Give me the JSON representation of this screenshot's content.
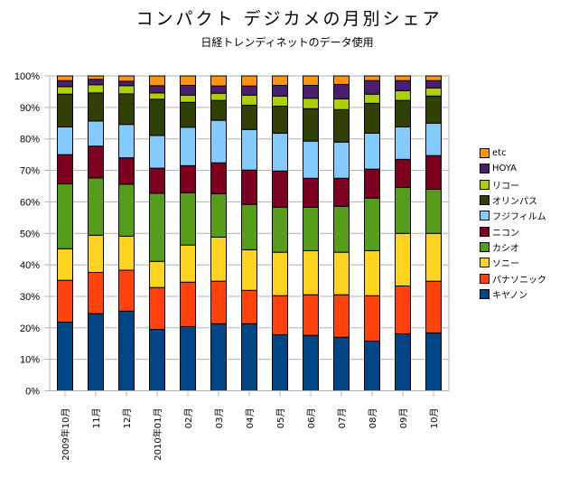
{
  "chart_data": {
    "type": "bar",
    "stacked": "percent",
    "title": "コンパクト デジカメの月別シェア",
    "subtitle": "日経トレンディネットのデータ使用",
    "xlabel": "",
    "ylabel": "",
    "ylim": [
      0,
      100
    ],
    "yticks": [
      "0%",
      "10%",
      "20%",
      "30%",
      "40%",
      "50%",
      "60%",
      "70%",
      "80%",
      "90%",
      "100%"
    ],
    "grid": true,
    "legend_position": "right",
    "categories": [
      "2009年10月",
      "11月",
      "12月",
      "2010年01月",
      "02月",
      "03月",
      "04月",
      "05月",
      "06月",
      "07月",
      "08月",
      "09月",
      "10月"
    ],
    "series": [
      {
        "name": "キヤノン",
        "color": "#004586",
        "values": [
          21.8,
          24.5,
          25.3,
          19.5,
          20.4,
          21.3,
          21.3,
          17.8,
          17.6,
          17.0,
          15.8,
          18.1,
          18.4
        ]
      },
      {
        "name": "パナソニック",
        "color": "#FF420E",
        "values": [
          13.3,
          13.1,
          13.0,
          13.3,
          14.1,
          13.5,
          10.6,
          12.4,
          12.9,
          13.5,
          14.4,
          15.2,
          16.4
        ]
      },
      {
        "name": "ソニー",
        "color": "#FFD320",
        "values": [
          10.0,
          11.8,
          10.8,
          8.3,
          11.8,
          14.0,
          12.9,
          13.8,
          14.0,
          13.5,
          14.3,
          16.7,
          15.2
        ]
      },
      {
        "name": "カシオ",
        "color": "#579D1C",
        "values": [
          20.6,
          18.2,
          16.5,
          21.6,
          16.6,
          13.8,
          14.4,
          14.3,
          13.8,
          14.6,
          16.7,
          14.6,
          14.0
        ]
      },
      {
        "name": "ニコン",
        "color": "#7E0021",
        "values": [
          9.3,
          10.1,
          8.4,
          8.0,
          8.6,
          9.8,
          10.9,
          11.5,
          9.2,
          8.9,
          9.2,
          8.9,
          10.7
        ]
      },
      {
        "name": "フジフィルム",
        "color": "#83CAFF",
        "values": [
          8.8,
          8.0,
          10.6,
          10.4,
          12.2,
          13.5,
          12.9,
          12.0,
          11.8,
          11.5,
          11.4,
          10.3,
          10.3
        ]
      },
      {
        "name": "オリンパス",
        "color": "#314004",
        "values": [
          10.4,
          8.9,
          9.7,
          11.5,
          7.9,
          6.3,
          7.7,
          8.6,
          10.3,
          10.3,
          9.5,
          8.4,
          8.6
        ]
      },
      {
        "name": "リコー",
        "color": "#AECF00",
        "values": [
          2.4,
          2.6,
          2.6,
          2.0,
          2.3,
          2.3,
          3.2,
          3.2,
          3.3,
          3.4,
          2.9,
          3.1,
          2.6
        ]
      },
      {
        "name": "HOYA",
        "color": "#4B1F6F",
        "values": [
          1.9,
          1.7,
          1.4,
          2.3,
          3.1,
          2.3,
          2.9,
          3.4,
          4.1,
          4.6,
          4.3,
          3.2,
          2.3
        ]
      },
      {
        "name": "etc",
        "color": "#FF950E",
        "values": [
          1.5,
          1.1,
          1.7,
          3.1,
          3.0,
          3.2,
          3.2,
          3.0,
          3.0,
          2.7,
          1.5,
          1.5,
          1.5
        ]
      }
    ]
  }
}
